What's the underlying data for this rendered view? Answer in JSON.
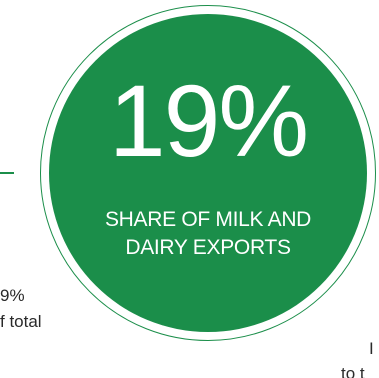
{
  "stat": {
    "value": "19%",
    "caption_line1": "SHARE OF MILK AND",
    "caption_line2": "DAIRY EXPORTS"
  },
  "left_text": {
    "line1": "9%",
    "line2": "f total"
  },
  "right_text": {
    "line1": "I",
    "line2": "to t"
  },
  "colors": {
    "accent": "#1b8e4a",
    "text_on_accent": "#ffffff",
    "body_text": "#2a2a2a"
  }
}
